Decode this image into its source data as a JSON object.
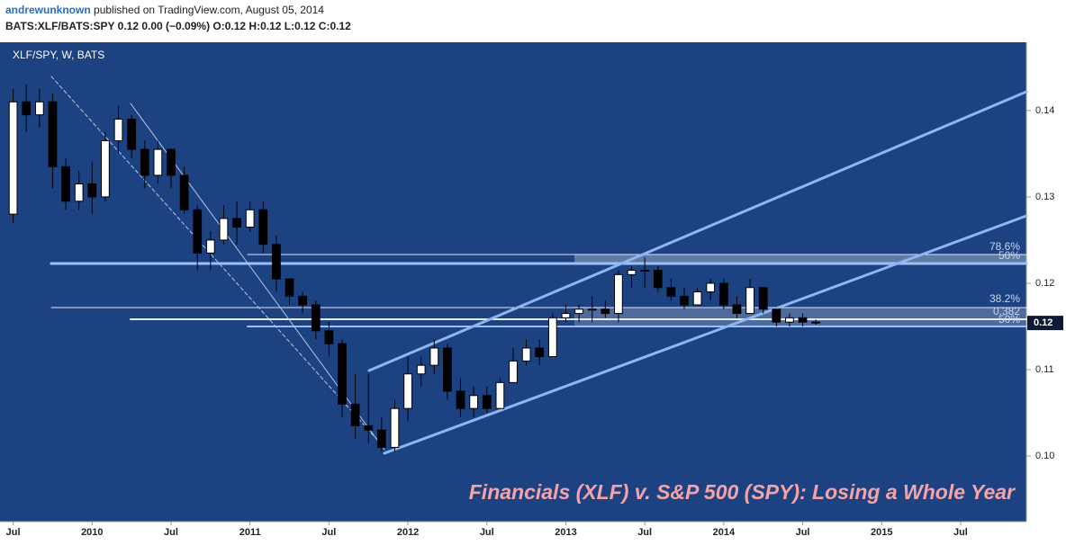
{
  "header": {
    "author": "andrewunknown",
    "published": "published on TradingView.com, August 05, 2014",
    "quote": "BATS:XLF/BATS:SPY  0.12 0.00 (−0.09%) O:0.12 H:0.12 L:0.12 C:0.12"
  },
  "chart_data": {
    "type": "candlestick",
    "title": "XLF/SPY, W, BATS",
    "annotation": "Financials (XLF) v. S&P 500 (SPY): Losing a Whole Year",
    "x": [
      "2009-07",
      "2009-08",
      "2009-09",
      "2009-10",
      "2009-11",
      "2009-12",
      "2010-01",
      "2010-02",
      "2010-03",
      "2010-04",
      "2010-05",
      "2010-06",
      "2010-07",
      "2010-08",
      "2010-09",
      "2010-10",
      "2010-11",
      "2010-12",
      "2011-01",
      "2011-02",
      "2011-03",
      "2011-04",
      "2011-05",
      "2011-06",
      "2011-07",
      "2011-08",
      "2011-09",
      "2011-10",
      "2011-11",
      "2011-12",
      "2012-01",
      "2012-02",
      "2012-03",
      "2012-04",
      "2012-05",
      "2012-06",
      "2012-07",
      "2012-08",
      "2012-09",
      "2012-10",
      "2012-11",
      "2012-12",
      "2013-01",
      "2013-02",
      "2013-03",
      "2013-04",
      "2013-05",
      "2013-06",
      "2013-07",
      "2013-08",
      "2013-09",
      "2013-10",
      "2013-11",
      "2013-12",
      "2014-01",
      "2014-02",
      "2014-03",
      "2014-04",
      "2014-05",
      "2014-06",
      "2014-07",
      "2014-08"
    ],
    "open": [
      0.128,
      0.141,
      0.1395,
      0.141,
      0.1335,
      0.1295,
      0.1315,
      0.13,
      0.1365,
      0.139,
      0.1355,
      0.1325,
      0.1355,
      0.1325,
      0.1285,
      0.1235,
      0.125,
      0.1275,
      0.1265,
      0.1285,
      0.1245,
      0.1205,
      0.1185,
      0.1175,
      0.1145,
      0.113,
      0.106,
      0.1035,
      0.103,
      0.101,
      0.1055,
      0.1095,
      0.1105,
      0.1125,
      0.1075,
      0.1055,
      0.107,
      0.1055,
      0.1085,
      0.111,
      0.1125,
      0.1115,
      0.116,
      0.1165,
      0.117,
      0.117,
      0.1165,
      0.121,
      0.1215,
      0.1215,
      0.1195,
      0.1185,
      0.1175,
      0.119,
      0.12,
      0.1175,
      0.1165,
      0.1195,
      0.117,
      0.1155,
      0.116,
      0.1155
    ],
    "high": [
      0.1425,
      0.143,
      0.1425,
      0.142,
      0.1345,
      0.133,
      0.134,
      0.1375,
      0.1405,
      0.1395,
      0.1365,
      0.1365,
      0.1355,
      0.1335,
      0.129,
      0.126,
      0.129,
      0.1295,
      0.1295,
      0.1295,
      0.1255,
      0.1205,
      0.119,
      0.118,
      0.1155,
      0.1135,
      0.1095,
      0.1095,
      0.1045,
      0.1065,
      0.1115,
      0.1115,
      0.1135,
      0.113,
      0.109,
      0.108,
      0.108,
      0.109,
      0.1125,
      0.1135,
      0.1135,
      0.1165,
      0.1175,
      0.1175,
      0.1185,
      0.118,
      0.1215,
      0.122,
      0.123,
      0.122,
      0.1205,
      0.1195,
      0.1195,
      0.1205,
      0.1205,
      0.1185,
      0.1205,
      0.1195,
      0.117,
      0.1165,
      0.1165,
      0.1158
    ],
    "low": [
      0.127,
      0.1375,
      0.138,
      0.131,
      0.1285,
      0.1285,
      0.128,
      0.1295,
      0.135,
      0.1345,
      0.131,
      0.1315,
      0.131,
      0.128,
      0.1215,
      0.1215,
      0.1245,
      0.1245,
      0.126,
      0.1235,
      0.119,
      0.1175,
      0.1165,
      0.1135,
      0.1115,
      0.1045,
      0.102,
      0.1015,
      0.1005,
      0.1005,
      0.104,
      0.108,
      0.1095,
      0.1065,
      0.1045,
      0.1045,
      0.105,
      0.1055,
      0.1085,
      0.1105,
      0.1105,
      0.1115,
      0.1155,
      0.1155,
      0.1155,
      0.116,
      0.1155,
      0.1195,
      0.1195,
      0.119,
      0.118,
      0.117,
      0.1175,
      0.118,
      0.117,
      0.116,
      0.1165,
      0.1165,
      0.115,
      0.115,
      0.115,
      0.1152
    ],
    "close": [
      0.141,
      0.1395,
      0.141,
      0.1335,
      0.1295,
      0.1315,
      0.13,
      0.1365,
      0.139,
      0.1355,
      0.1325,
      0.1355,
      0.1325,
      0.1285,
      0.1235,
      0.125,
      0.1275,
      0.1265,
      0.1285,
      0.1245,
      0.1205,
      0.1185,
      0.1175,
      0.1145,
      0.113,
      0.106,
      0.1035,
      0.103,
      0.101,
      0.1055,
      0.1095,
      0.1105,
      0.1125,
      0.1075,
      0.1055,
      0.107,
      0.1055,
      0.1085,
      0.111,
      0.1125,
      0.1115,
      0.116,
      0.1165,
      0.117,
      0.117,
      0.1165,
      0.121,
      0.1215,
      0.1215,
      0.1195,
      0.1185,
      0.1175,
      0.119,
      0.12,
      0.1175,
      0.1165,
      0.1195,
      0.117,
      0.1155,
      0.116,
      0.1155,
      0.1154
    ],
    "up_color": "#ffffff",
    "down_color": "#000000",
    "background": "#1d4282",
    "last_price_label": "0.12",
    "fib_labels": [
      "78.6%",
      "50%",
      "38.2%",
      "0.382",
      "50%"
    ],
    "ylim": [
      0.0924,
      0.1479
    ],
    "yticks": [
      {
        "value": 0.1,
        "label": "0.10"
      },
      0.11,
      0.12,
      0.13,
      0.14
    ],
    "xlim": [
      "2009-06",
      "2015-12"
    ],
    "xticks": [
      {
        "value": "2009-07",
        "label": "Jul"
      },
      {
        "value": "2010-01",
        "label": "2010"
      },
      {
        "value": "2010-07",
        "label": "Jul"
      },
      {
        "value": "2011-01",
        "label": "2011"
      },
      {
        "value": "2011-07",
        "label": "Jul"
      },
      {
        "value": "2012-01",
        "label": "2012"
      },
      {
        "value": "2012-07",
        "label": "Jul"
      },
      {
        "value": "2013-01",
        "label": "2013"
      },
      {
        "value": "2013-07",
        "label": "Jul"
      },
      {
        "value": "2014-01",
        "label": "2014"
      },
      {
        "value": "2014-07",
        "label": "Jul"
      },
      {
        "value": "2015-01",
        "label": "2015"
      },
      {
        "value": "2015-07",
        "label": "Jul"
      }
    ]
  }
}
